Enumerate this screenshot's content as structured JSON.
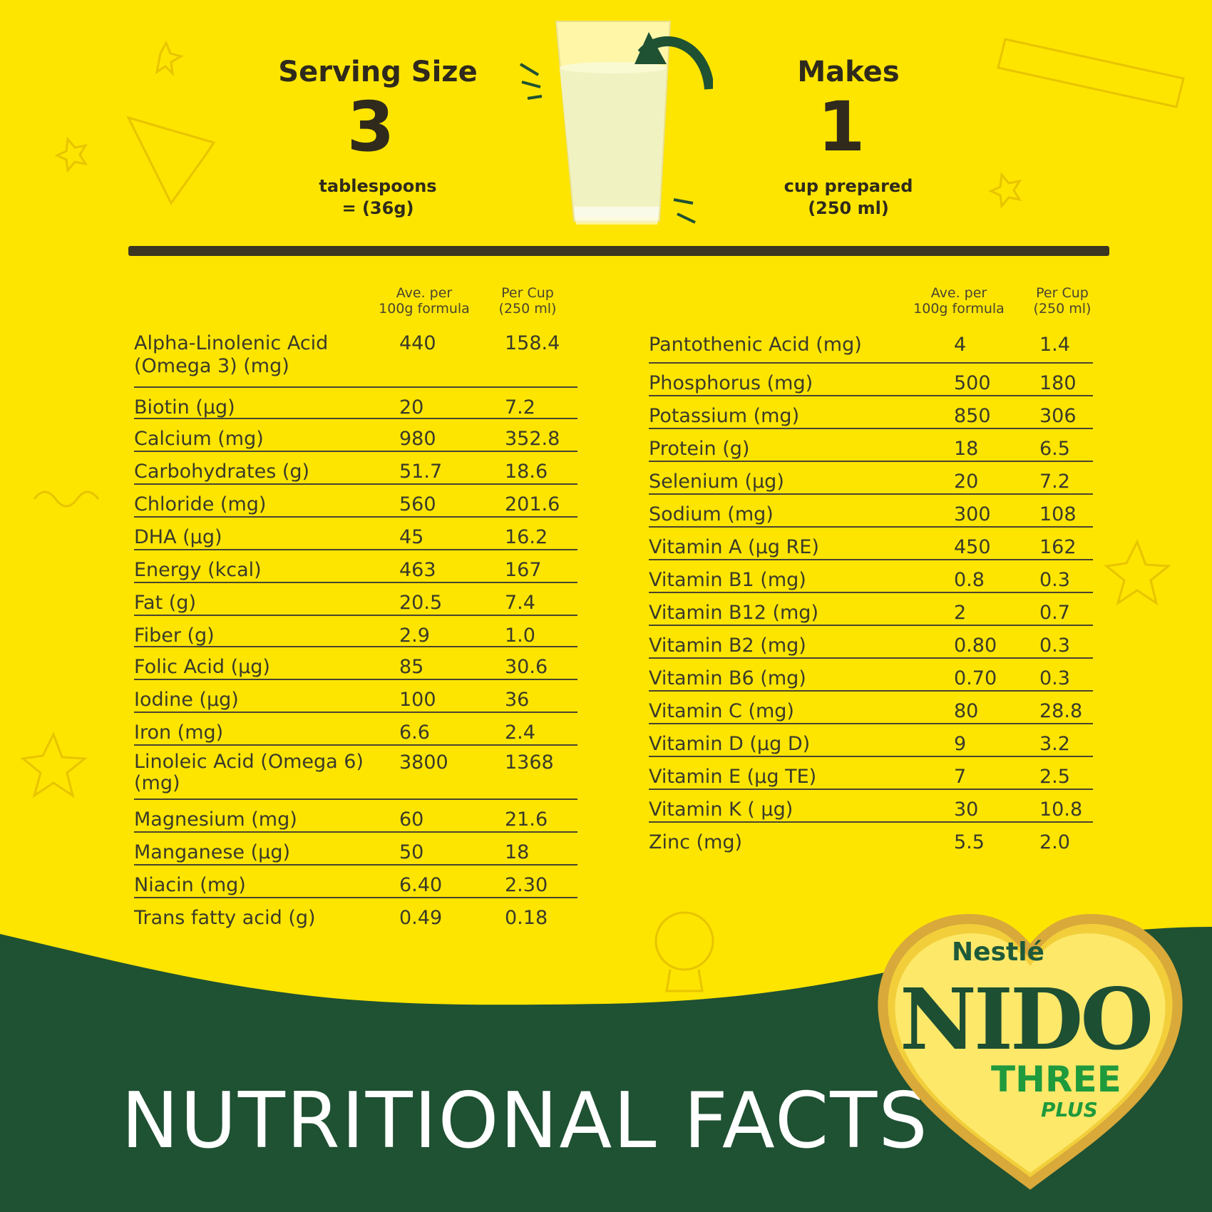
{
  "header": {
    "serving_title": "Serving Size",
    "serving_amount": "3",
    "serving_unit": "tablespoons",
    "serving_weight": "= (36g)",
    "makes_title": "Makes",
    "makes_amount": "1",
    "makes_unit": "cup prepared",
    "makes_volume": "(250 ml)"
  },
  "columns": {
    "per100_line1": "Ave. per",
    "per100_line2": "100g formula",
    "percup_line1": "Per Cup",
    "percup_line2": "(250 ml)"
  },
  "left_rows": [
    {
      "name": "Alpha-Linolenic Acid (Omega 3) (mg)",
      "per100": "440",
      "percup": "158.4"
    },
    {
      "name": "Biotin (µg)",
      "per100": "20",
      "percup": "7.2"
    },
    {
      "name": "Calcium (mg)",
      "per100": "980",
      "percup": "352.8"
    },
    {
      "name": "Carbohydrates (g)",
      "per100": "51.7",
      "percup": "18.6"
    },
    {
      "name": "Chloride (mg)",
      "per100": "560",
      "percup": "201.6"
    },
    {
      "name": "DHA (µg)",
      "per100": "45",
      "percup": "16.2"
    },
    {
      "name": "Energy (kcal)",
      "per100": "463",
      "percup": "167"
    },
    {
      "name": "Fat (g)",
      "per100": "20.5",
      "percup": "7.4"
    },
    {
      "name": "Fiber (g)",
      "per100": "2.9",
      "percup": "1.0"
    },
    {
      "name": "Folic Acid (µg)",
      "per100": "85",
      "percup": "30.6"
    },
    {
      "name": "Iodine (µg)",
      "per100": "100",
      "percup": "36"
    },
    {
      "name": "Iron (mg)",
      "per100": "6.6",
      "percup": "2.4"
    },
    {
      "name": "Linoleic Acid (Omega 6) (mg)",
      "per100": "3800",
      "percup": "1368"
    },
    {
      "name": "Magnesium (mg)",
      "per100": "60",
      "percup": "21.6"
    },
    {
      "name": "Manganese (µg)",
      "per100": "50",
      "percup": "18"
    },
    {
      "name": "Niacin (mg)",
      "per100": "6.40",
      "percup": "2.30"
    },
    {
      "name": "Trans fatty acid (g)",
      "per100": "0.49",
      "percup": "0.18"
    }
  ],
  "right_rows": [
    {
      "name": "Pantothenic Acid (mg)",
      "per100": "4",
      "percup": "1.4"
    },
    {
      "name": "Phosphorus (mg)",
      "per100": "500",
      "percup": "180"
    },
    {
      "name": "Potassium (mg)",
      "per100": "850",
      "percup": "306"
    },
    {
      "name": "Protein (g)",
      "per100": "18",
      "percup": "6.5"
    },
    {
      "name": "Selenium (µg)",
      "per100": "20",
      "percup": "7.2"
    },
    {
      "name": "Sodium (mg)",
      "per100": "300",
      "percup": "108"
    },
    {
      "name": "Vitamin A (µg RE)",
      "per100": "450",
      "percup": "162"
    },
    {
      "name": "Vitamin B1 (mg)",
      "per100": "0.8",
      "percup": "0.3"
    },
    {
      "name": "Vitamin B12 (mg)",
      "per100": "2",
      "percup": "0.7"
    },
    {
      "name": "Vitamin B2 (mg)",
      "per100": "0.80",
      "percup": "0.3"
    },
    {
      "name": "Vitamin B6 (mg)",
      "per100": "0.70",
      "percup": "0.3"
    },
    {
      "name": "Vitamin C (mg)",
      "per100": "80",
      "percup": "28.8"
    },
    {
      "name": "Vitamin D (µg D)",
      "per100": "9",
      "percup": "3.2"
    },
    {
      "name": "Vitamin E (µg TE)",
      "per100": "7",
      "percup": "2.5"
    },
    {
      "name": "Vitamin K ( µg)",
      "per100": "30",
      "percup": "10.8"
    },
    {
      "name": "Zinc (mg)",
      "per100": "5.5",
      "percup": "2.0"
    }
  ],
  "footer": {
    "title": "NUTRITIONAL FACTS"
  },
  "logo": {
    "brand": "Nestlé",
    "product": "NIDO",
    "variant": "THREE",
    "variant_sub": "PLUS"
  },
  "colors": {
    "background": "#fde500",
    "band": "#1f5133",
    "text": "#3a3a2a"
  }
}
